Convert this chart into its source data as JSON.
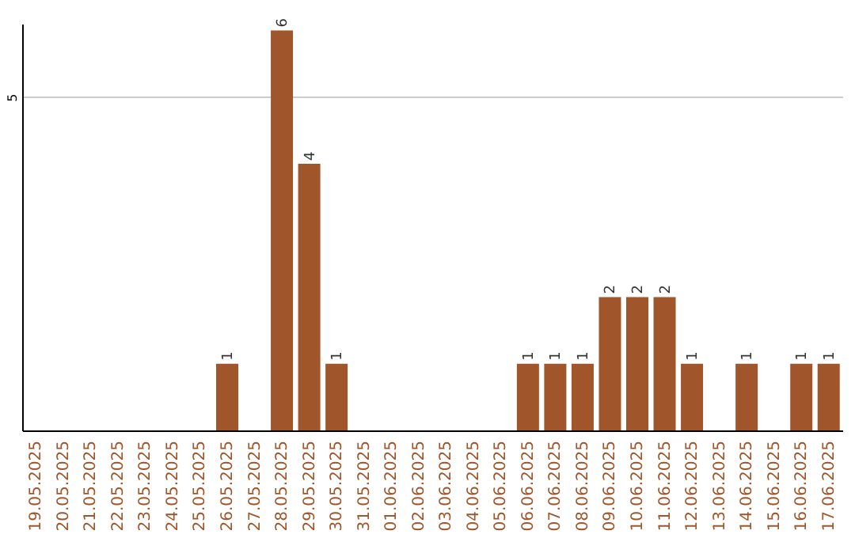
{
  "chart_data": {
    "type": "bar",
    "categories": [
      "19.05.2025",
      "20.05.2025",
      "21.05.2025",
      "22.05.2025",
      "23.05.2025",
      "24.05.2025",
      "25.05.2025",
      "26.05.2025",
      "27.05.2025",
      "28.05.2025",
      "29.05.2025",
      "30.05.2025",
      "31.05.2025",
      "01.06.2025",
      "02.06.2025",
      "03.06.2025",
      "04.06.2025",
      "05.06.2025",
      "06.06.2025",
      "07.06.2025",
      "08.06.2025",
      "09.06.2025",
      "10.06.2025",
      "11.06.2025",
      "12.06.2025",
      "13.06.2025",
      "14.06.2025",
      "15.06.2025",
      "16.06.2025",
      "17.06.2025"
    ],
    "values": [
      0,
      0,
      0,
      0,
      0,
      0,
      0,
      1,
      0,
      6,
      4,
      1,
      0,
      0,
      0,
      0,
      0,
      0,
      1,
      1,
      1,
      2,
      2,
      2,
      1,
      0,
      1,
      0,
      1,
      1
    ],
    "value_labels": [
      null,
      null,
      null,
      null,
      null,
      null,
      null,
      "1",
      null,
      "6",
      "4",
      "1",
      null,
      null,
      null,
      null,
      null,
      null,
      "1",
      "1",
      "1",
      "2",
      "2",
      "2",
      "1",
      null,
      "1",
      null,
      "1",
      "1"
    ],
    "color": "#a0562a",
    "ylim": [
      0,
      6.1
    ],
    "yticks": [
      5
    ],
    "grid": "y"
  }
}
